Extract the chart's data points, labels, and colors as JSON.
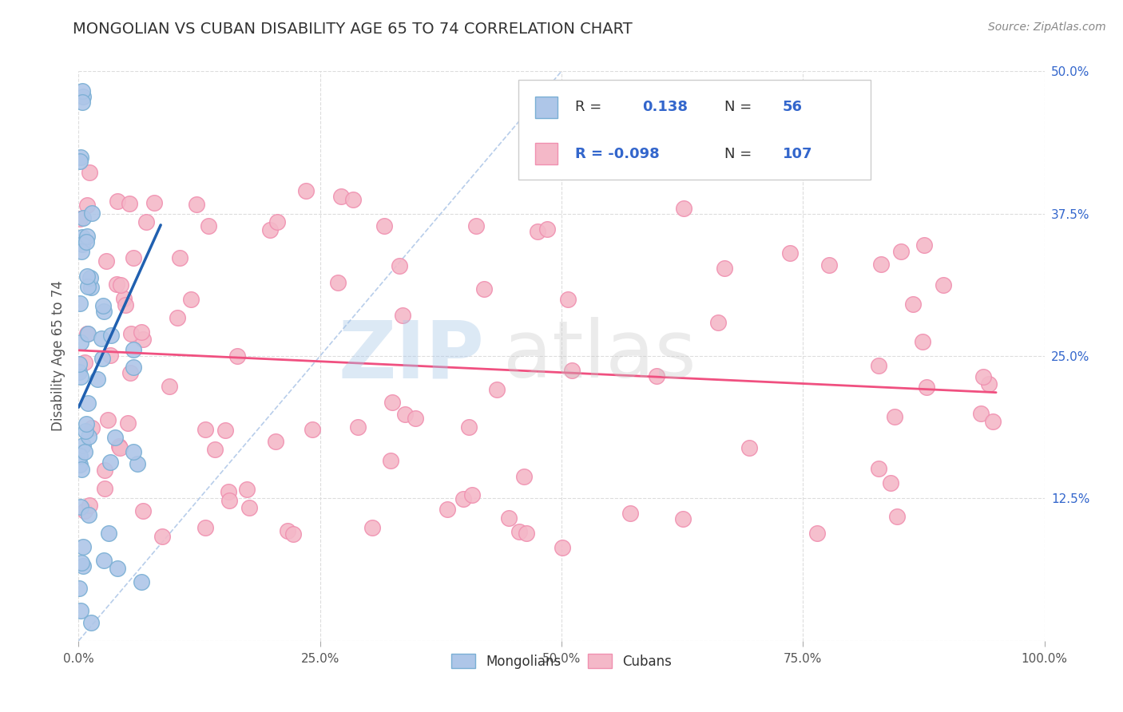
{
  "title": "MONGOLIAN VS CUBAN DISABILITY AGE 65 TO 74 CORRELATION CHART",
  "source": "Source: ZipAtlas.com",
  "ylabel": "Disability Age 65 to 74",
  "xlim": [
    0,
    1.0
  ],
  "ylim": [
    0,
    0.5
  ],
  "mongolian_R": 0.138,
  "mongolian_N": 56,
  "cuban_R": -0.098,
  "cuban_N": 107,
  "mongolian_color": "#aec6e8",
  "cuban_color": "#f4b8c8",
  "mongolian_edge": "#7aafd4",
  "cuban_edge": "#f090b0",
  "trend_mongolian_color": "#2060b0",
  "trend_cuban_color": "#f05080",
  "ref_line_color": "#b0c8e8",
  "background_color": "#ffffff",
  "watermark_zip": "ZIP",
  "watermark_atlas": "atlas",
  "legend_text_color": "#3366cc",
  "legend_label_color": "#333333"
}
